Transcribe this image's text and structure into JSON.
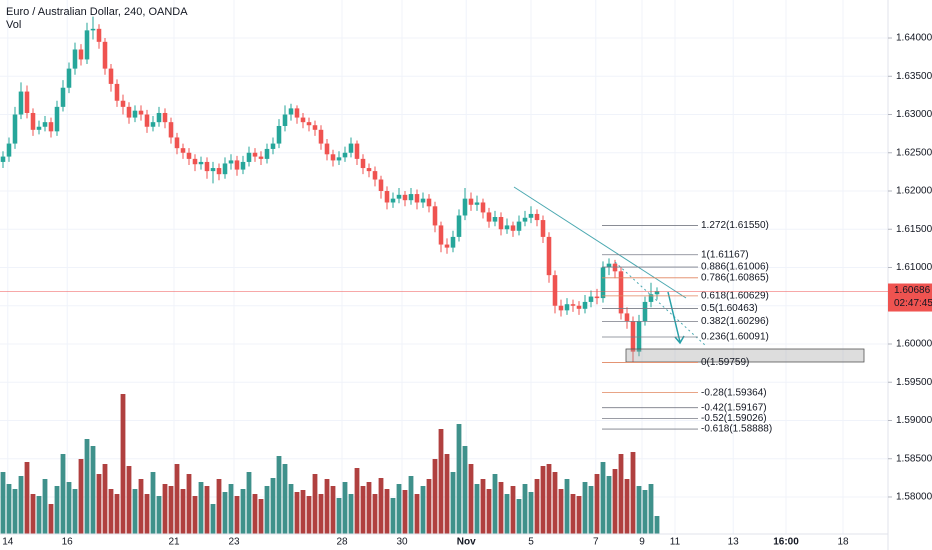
{
  "chart_data": {
    "type": "candlestick",
    "title": "Euro / Australian Dollar, 240, OANDA",
    "volume_label": "Vol",
    "up_color": "#26a69a",
    "down_color": "#ef5350",
    "volume_up_color": "#3f918b",
    "volume_down_color": "#b0403f",
    "grid": true,
    "ylim": [
      1.57516,
      1.64497
    ],
    "yticks": [
      {
        "value": 1.58,
        "label": "1.58000"
      },
      {
        "value": 1.585,
        "label": "1.58500"
      },
      {
        "value": 1.59,
        "label": "1.59000"
      },
      {
        "value": 1.595,
        "label": "1.59500"
      },
      {
        "value": 1.6,
        "label": "1.60000"
      },
      {
        "value": 1.605,
        "label": "1.60500"
      },
      {
        "value": 1.61,
        "label": "1.61000"
      },
      {
        "value": 1.615,
        "label": "1.61500"
      },
      {
        "value": 1.62,
        "label": "1.62000"
      },
      {
        "value": 1.625,
        "label": "1.62500"
      },
      {
        "value": 1.63,
        "label": "1.63000"
      },
      {
        "value": 1.635,
        "label": "1.63500"
      },
      {
        "value": 1.64,
        "label": "1.64000"
      }
    ],
    "xlim": [
      -0.5,
      147.5
    ],
    "xticks": [
      {
        "value": 0.8,
        "label": "14"
      },
      {
        "value": 10.7,
        "label": "16"
      },
      {
        "value": 28.5,
        "label": "21"
      },
      {
        "value": 38.5,
        "label": "23"
      },
      {
        "value": 56.5,
        "label": "28"
      },
      {
        "value": 66.5,
        "label": "30"
      },
      {
        "value": 77.2,
        "label": "Nov"
      },
      {
        "value": 88,
        "label": "5"
      },
      {
        "value": 98.8,
        "label": "7"
      },
      {
        "value": 106.5,
        "label": "9"
      },
      {
        "value": 112,
        "label": "11"
      },
      {
        "value": 121.7,
        "label": "13"
      },
      {
        "value": 130.5,
        "label": "16:00"
      },
      {
        "value": 140,
        "label": "18"
      }
    ],
    "series": [
      {
        "open": [
          1.6238,
          1.6245,
          1.6262,
          1.63,
          1.633,
          1.6302,
          1.628,
          1.6284,
          1.629,
          1.6278,
          1.631,
          1.6335,
          1.636,
          1.6385,
          1.6372,
          1.641,
          1.6412,
          1.6395,
          1.636,
          1.634,
          1.6318,
          1.631,
          1.6296,
          1.6305,
          1.63,
          1.6284,
          1.629,
          1.6302,
          1.629,
          1.627,
          1.6256,
          1.625,
          1.6242,
          1.6235,
          1.6238,
          1.6226,
          1.623,
          1.6222,
          1.6236,
          1.624,
          1.6228,
          1.6238,
          1.625,
          1.6245,
          1.6242,
          1.6255,
          1.6262,
          1.6285,
          1.63,
          1.6308,
          1.6296,
          1.629,
          1.6286,
          1.628,
          1.6262,
          1.6248,
          1.624,
          1.6244,
          1.625,
          1.6262,
          1.6242,
          1.623,
          1.6226,
          1.6215,
          1.62,
          1.6185,
          1.619,
          1.6195,
          1.6188,
          1.6196,
          1.6185,
          1.619,
          1.618,
          1.6155,
          1.613,
          1.6126,
          1.614,
          1.6168,
          1.619,
          1.6182,
          1.6185,
          1.6172,
          1.616,
          1.6166,
          1.615,
          1.6155,
          1.6148,
          1.616,
          1.6165,
          1.617,
          1.6162,
          1.614,
          1.609,
          1.605,
          1.6044,
          1.6052,
          1.605,
          1.6046,
          1.6055,
          1.6062,
          1.606,
          1.61,
          1.6105,
          1.6095,
          1.604,
          1.603,
          1.599,
          1.603,
          1.6055,
          1.6065
        ],
        "high": [
          1.6252,
          1.627,
          1.631,
          1.6342,
          1.6338,
          1.6308,
          1.6292,
          1.6298,
          1.6296,
          1.6318,
          1.6345,
          1.6368,
          1.6394,
          1.6392,
          1.642,
          1.6428,
          1.6418,
          1.64,
          1.6366,
          1.6346,
          1.6326,
          1.6316,
          1.6312,
          1.6312,
          1.6306,
          1.6298,
          1.631,
          1.6308,
          1.6296,
          1.6276,
          1.6262,
          1.6256,
          1.6248,
          1.6245,
          1.6244,
          1.6238,
          1.6236,
          1.6244,
          1.6248,
          1.6246,
          1.6246,
          1.6258,
          1.6256,
          1.6252,
          1.6262,
          1.627,
          1.6294,
          1.6312,
          1.6314,
          1.6312,
          1.6302,
          1.6296,
          1.6292,
          1.6286,
          1.6268,
          1.6254,
          1.6252,
          1.6258,
          1.627,
          1.6266,
          1.6248,
          1.6236,
          1.6232,
          1.622,
          1.6206,
          1.6198,
          1.6204,
          1.62,
          1.6204,
          1.6202,
          1.6198,
          1.6196,
          1.6186,
          1.616,
          1.6138,
          1.6148,
          1.6176,
          1.6204,
          1.6198,
          1.6194,
          1.619,
          1.6178,
          1.6174,
          1.6172,
          1.6164,
          1.616,
          1.6168,
          1.6174,
          1.618,
          1.6176,
          1.6168,
          1.6146,
          1.6096,
          1.6058,
          1.606,
          1.6058,
          1.6056,
          1.6064,
          1.607,
          1.6072,
          1.6108,
          1.6112,
          1.611,
          1.61,
          1.6048,
          1.6036,
          1.6038,
          1.6062,
          1.608,
          1.6074
        ],
        "low": [
          1.623,
          1.6238,
          1.6255,
          1.6294,
          1.6295,
          1.6272,
          1.6274,
          1.6278,
          1.627,
          1.6272,
          1.6304,
          1.6328,
          1.6352,
          1.6364,
          1.6366,
          1.6398,
          1.6386,
          1.6352,
          1.633,
          1.631,
          1.63,
          1.6288,
          1.629,
          1.6292,
          1.6276,
          1.6278,
          1.6284,
          1.6282,
          1.6262,
          1.6248,
          1.6242,
          1.6234,
          1.6226,
          1.6228,
          1.6216,
          1.621,
          1.6214,
          1.6216,
          1.6228,
          1.622,
          1.6222,
          1.6232,
          1.6238,
          1.6234,
          1.6236,
          1.6248,
          1.6256,
          1.6278,
          1.6292,
          1.6288,
          1.6282,
          1.6278,
          1.6272,
          1.6254,
          1.624,
          1.6232,
          1.6234,
          1.6238,
          1.6244,
          1.6234,
          1.6222,
          1.6218,
          1.6206,
          1.619,
          1.6176,
          1.6178,
          1.6184,
          1.618,
          1.6182,
          1.6176,
          1.6178,
          1.6172,
          1.6146,
          1.612,
          1.6118,
          1.612,
          1.6134,
          1.6162,
          1.6174,
          1.6174,
          1.6164,
          1.6152,
          1.6154,
          1.6142,
          1.6144,
          1.614,
          1.6142,
          1.6154,
          1.6158,
          1.6154,
          1.6132,
          1.608,
          1.604,
          1.6036,
          1.6038,
          1.6042,
          1.6038,
          1.604,
          1.6048,
          1.6052,
          1.6054,
          1.609,
          1.6086,
          1.6032,
          1.602,
          1.5976,
          1.5984,
          1.6024,
          1.6048,
          1.6058
        ],
        "close": [
          1.6245,
          1.6262,
          1.63,
          1.633,
          1.6302,
          1.628,
          1.6284,
          1.629,
          1.6278,
          1.631,
          1.6335,
          1.636,
          1.6385,
          1.6372,
          1.641,
          1.6412,
          1.6395,
          1.636,
          1.634,
          1.6318,
          1.631,
          1.6296,
          1.6305,
          1.63,
          1.6284,
          1.629,
          1.6302,
          1.629,
          1.627,
          1.6256,
          1.625,
          1.6242,
          1.6235,
          1.6238,
          1.6226,
          1.623,
          1.6222,
          1.6236,
          1.624,
          1.6228,
          1.6238,
          1.625,
          1.6245,
          1.6242,
          1.6255,
          1.6262,
          1.6285,
          1.63,
          1.6308,
          1.6296,
          1.629,
          1.6286,
          1.628,
          1.6262,
          1.6248,
          1.624,
          1.6244,
          1.625,
          1.6262,
          1.6242,
          1.623,
          1.6226,
          1.6215,
          1.62,
          1.6185,
          1.619,
          1.6195,
          1.6188,
          1.6196,
          1.6185,
          1.619,
          1.618,
          1.6155,
          1.613,
          1.6126,
          1.614,
          1.6168,
          1.619,
          1.6182,
          1.6185,
          1.6172,
          1.616,
          1.6166,
          1.615,
          1.6155,
          1.6148,
          1.616,
          1.6165,
          1.617,
          1.6162,
          1.614,
          1.609,
          1.605,
          1.6044,
          1.6052,
          1.605,
          1.6046,
          1.6055,
          1.6062,
          1.606,
          1.61,
          1.6105,
          1.6095,
          1.604,
          1.603,
          1.599,
          1.603,
          1.6055,
          1.6065,
          1.6069
        ],
        "volume": [
          62,
          50,
          45,
          58,
          72,
          40,
          38,
          55,
          30,
          48,
          80,
          52,
          45,
          75,
          95,
          88,
          60,
          70,
          45,
          40,
          140,
          68,
          45,
          55,
          40,
          62,
          38,
          50,
          48,
          70,
          45,
          60,
          38,
          52,
          48,
          30,
          55,
          42,
          50,
          38,
          45,
          62,
          40,
          35,
          48,
          56,
          78,
          70,
          50,
          42,
          44,
          38,
          60,
          40,
          55,
          48,
          36,
          52,
          40,
          66,
          48,
          52,
          40,
          56,
          45,
          36,
          50,
          44,
          58,
          40,
          48,
          55,
          75,
          105,
          80,
          62,
          110,
          88,
          70,
          50,
          55,
          45,
          60,
          52,
          40,
          48,
          35,
          50,
          42,
          55,
          68,
          70,
          62,
          45,
          55,
          40,
          38,
          52,
          48,
          60,
          72,
          58,
          65,
          80,
          55,
          82,
          48,
          44,
          50,
          18
        ]
      }
    ],
    "last_price": {
      "value": 1.60686,
      "label": "1.60686"
    },
    "countdown": "02:47:45",
    "fib_levels": [
      {
        "price": 1.6155,
        "label": "1.272(1.61550)",
        "color": "#787b86"
      },
      {
        "price": 1.61167,
        "label": "1(1.61167)",
        "color": "#787b86"
      },
      {
        "price": 1.61006,
        "label": "0.886(1.61006)",
        "color": "#787b86"
      },
      {
        "price": 1.60865,
        "label": "0.786(1.60865)",
        "color": "#e0855f"
      },
      {
        "price": 1.60629,
        "label": "0.618(1.60629)",
        "color": "#e0855f"
      },
      {
        "price": 1.60463,
        "label": "0.5(1.60463)",
        "color": "#787b86"
      },
      {
        "price": 1.60296,
        "label": "0.382(1.60296)",
        "color": "#787b86"
      },
      {
        "price": 1.60091,
        "label": "0.236(1.60091)",
        "color": "#787b86"
      },
      {
        "price": 1.59759,
        "label": "0(1.59759)",
        "color": "#e0855f"
      },
      {
        "price": 1.59364,
        "label": "-0.28(1.59364)",
        "color": "#e0855f"
      },
      {
        "price": 1.59167,
        "label": "-0.42(1.59167)",
        "color": "#787b86"
      },
      {
        "price": 1.59026,
        "label": "-0.52(1.59026)",
        "color": "#787b86"
      },
      {
        "price": 1.58888,
        "label": "-0.618(1.58888)",
        "color": "#787b86"
      }
    ]
  }
}
